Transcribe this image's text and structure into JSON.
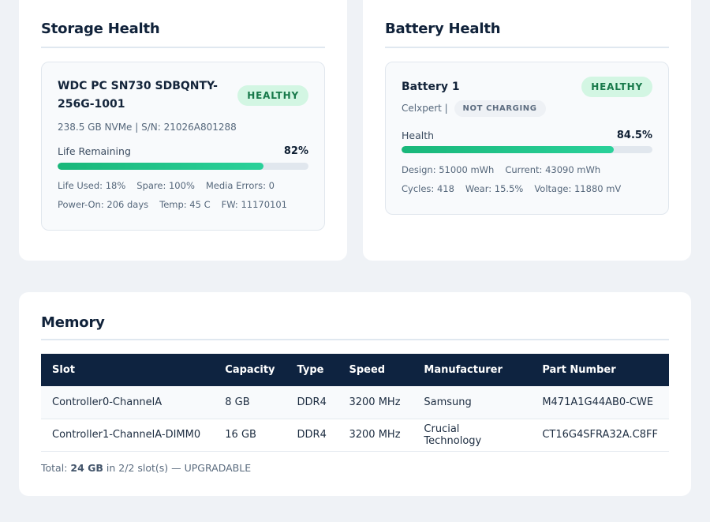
{
  "storage": {
    "title": "Storage Health",
    "device": {
      "name": "WDC PC SN730 SDBQNTY-256G-1001",
      "status": "HEALTHY",
      "meta": "238.5 GB NVMe | S/N: 21026A801288",
      "life_label": "Life Remaining",
      "life_pct_text": "82%",
      "life_pct": 0.82,
      "stats_row1": [
        "Life Used: 18%",
        "Spare: 100%",
        "Media Errors: 0"
      ],
      "stats_row2": [
        "Power-On: 206 days",
        "Temp: 45 C",
        "FW: 11170101"
      ]
    }
  },
  "battery": {
    "title": "Battery Health",
    "device": {
      "name": "Battery 1",
      "status": "HEALTHY",
      "vendor": "Celxpert |",
      "charge_state": "NOT CHARGING",
      "health_label": "Health",
      "health_pct_text": "84.5%",
      "health_pct": 0.845,
      "stats_row1": [
        "Design: 51000 mWh",
        "Current: 43090 mWh"
      ],
      "stats_row2": [
        "Cycles: 418",
        "Wear: 15.5%",
        "Voltage: 11880 mV"
      ]
    }
  },
  "memory": {
    "title": "Memory",
    "columns": [
      "Slot",
      "Capacity",
      "Type",
      "Speed",
      "Manufacturer",
      "Part Number"
    ],
    "rows": [
      [
        "Controller0-ChannelA",
        "8 GB",
        "DDR4",
        "3200 MHz",
        "Samsung",
        "M471A1G44AB0-CWE"
      ],
      [
        "Controller1-ChannelA-DIMM0",
        "16 GB",
        "DDR4",
        "3200 MHz",
        "Crucial Technology",
        "CT16G4SFRA32A.C8FF"
      ]
    ],
    "summary": {
      "prefix": "Total: ",
      "total": "24 GB",
      "suffix": " in 2/2 slot(s) — UPGRADABLE"
    }
  },
  "colors": {
    "page_bg": "#eff2f6",
    "table_header": "#0e2340",
    "healthy_badge_bg": "#d3f6e3",
    "healthy_badge_text": "#17794a",
    "bar_fill": "#19b77a"
  }
}
